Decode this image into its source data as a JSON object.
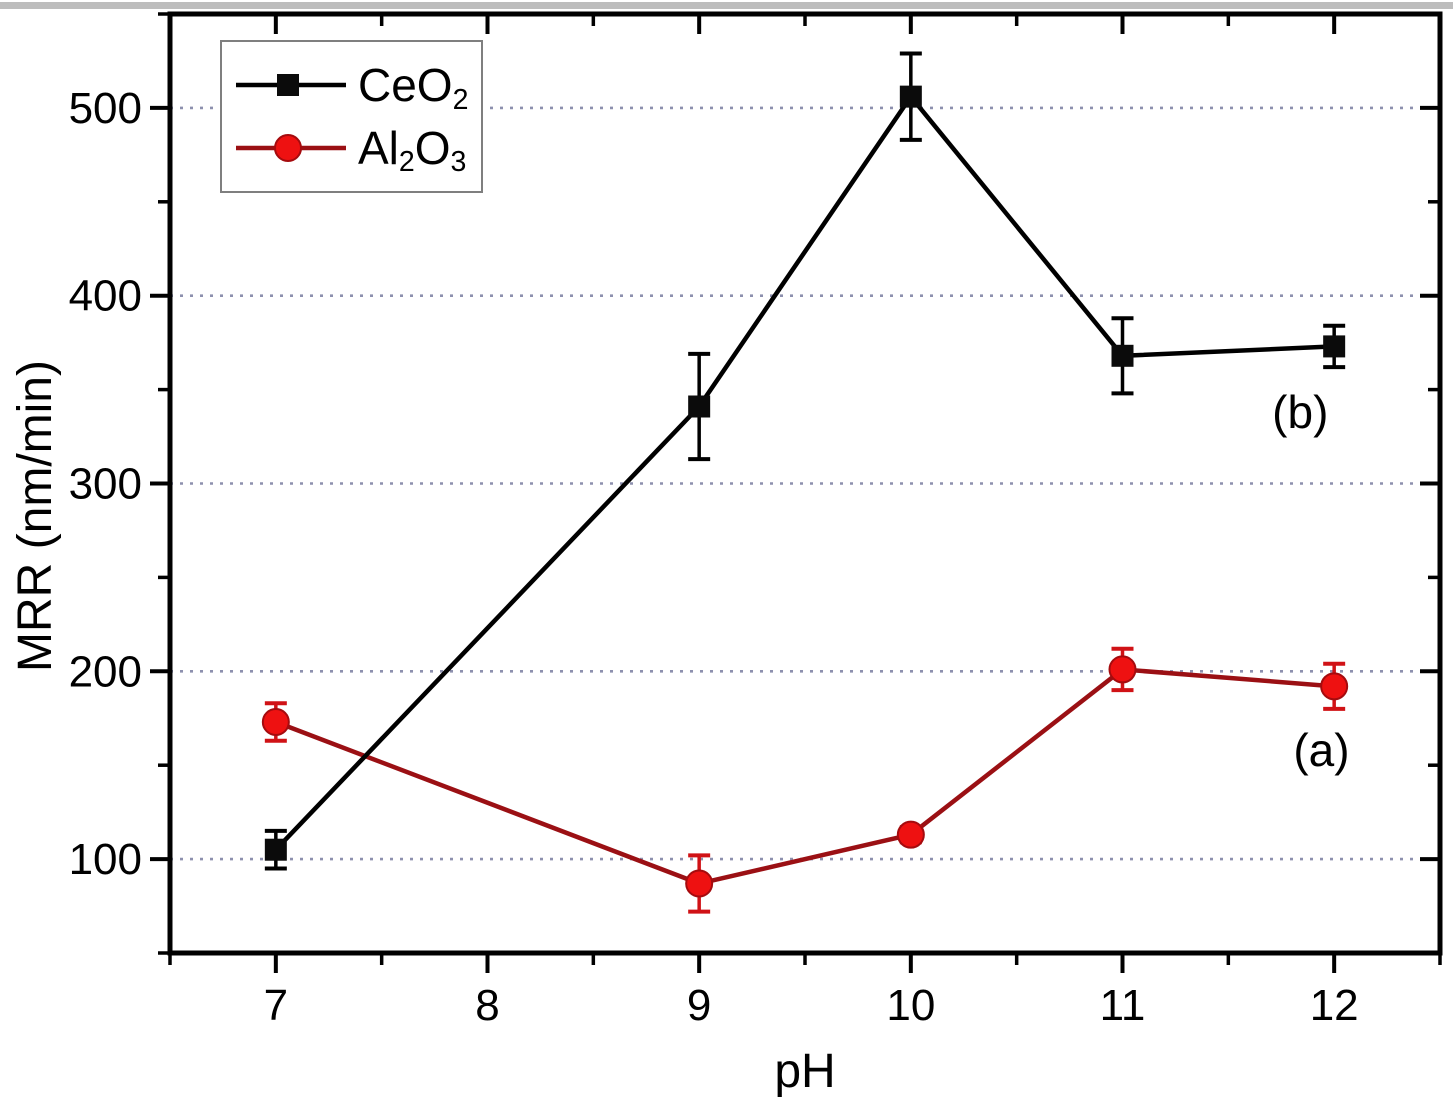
{
  "chart_data": {
    "type": "line",
    "title": "",
    "xlabel": "pH",
    "ylabel": "MRR (nm/min)",
    "xlim": [
      6.5,
      12.5
    ],
    "ylim": [
      50,
      550
    ],
    "x_major_ticks": [
      7,
      8,
      9,
      10,
      11,
      12
    ],
    "x_minor_ticks": [
      6.5,
      7.5,
      8.5,
      9.5,
      10.5,
      11.5,
      12.5
    ],
    "y_major_ticks": [
      100,
      200,
      300,
      400,
      500
    ],
    "y_minor_ticks": [
      50,
      150,
      250,
      350,
      450,
      550
    ],
    "grid": {
      "horizontal_at": [
        100,
        200,
        300,
        400,
        500
      ],
      "style": "dotted",
      "color": "#8d90ae"
    },
    "legend_position": "top-left",
    "x": [
      7,
      9,
      10,
      11,
      12
    ],
    "series": [
      {
        "name": "CeO2",
        "label_segments": [
          {
            "text": "CeO",
            "sub": false
          },
          {
            "text": "2",
            "sub": true
          }
        ],
        "line_color": "#000000",
        "marker": "square",
        "marker_color": "#0b0b0b",
        "error_color": "#000000",
        "values": [
          105,
          341,
          506,
          368,
          373
        ],
        "errors": [
          10,
          28,
          23,
          20,
          11
        ],
        "annotation": {
          "text": "(b)",
          "x": 11.84,
          "y": 338
        }
      },
      {
        "name": "Al2O3",
        "label_segments": [
          {
            "text": "Al",
            "sub": false
          },
          {
            "text": "2",
            "sub": true
          },
          {
            "text": "O",
            "sub": false
          },
          {
            "text": "3",
            "sub": true
          }
        ],
        "line_color": "#9b1014",
        "marker": "circle",
        "marker_color": "#ee1111",
        "marker_edge_color": "#a50b0e",
        "error_color": "#d01216",
        "values": [
          173,
          87,
          113,
          201,
          192
        ],
        "errors": [
          10,
          15,
          4,
          11,
          12
        ],
        "annotation": {
          "text": "(a)",
          "x": 11.94,
          "y": 158
        }
      }
    ]
  }
}
